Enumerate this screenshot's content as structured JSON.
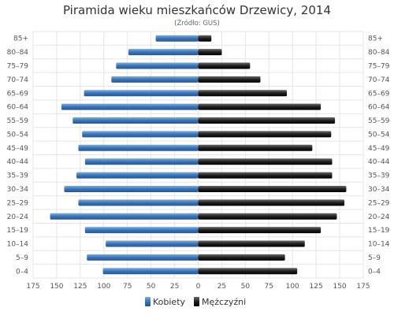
{
  "chart_data": {
    "type": "bar",
    "orientation": "horizontal-population-pyramid",
    "title": "Piramida wieku mieszkańców Drzewicy, 2014",
    "subtitle": "(Źródło: GUS)",
    "categories": [
      "85+",
      "80–84",
      "75–79",
      "70–74",
      "65–69",
      "60–64",
      "55–59",
      "50–54",
      "45–49",
      "40–44",
      "35–39",
      "30–34",
      "25–29",
      "20–24",
      "15–19",
      "10–14",
      "5–9",
      "0–4"
    ],
    "series": [
      {
        "name": "Kobiety",
        "color": "#3a73b5",
        "values": [
          45,
          74,
          87,
          92,
          121,
          145,
          133,
          123,
          127,
          120,
          129,
          142,
          127,
          157,
          120,
          98,
          118,
          101
        ]
      },
      {
        "name": "Mężczyźni",
        "color": "#1f1f1f",
        "values": [
          14,
          25,
          55,
          66,
          94,
          130,
          145,
          141,
          121,
          142,
          142,
          157,
          155,
          147,
          130,
          113,
          92,
          105
        ]
      }
    ],
    "xlim": [
      -175,
      175
    ],
    "x_ticks": [
      -175,
      -150,
      -125,
      -100,
      -75,
      -50,
      -25,
      0,
      25,
      50,
      75,
      100,
      125,
      150,
      175
    ],
    "x_tick_labels": [
      "175",
      "150",
      "125",
      "100",
      "75",
      "50",
      "25",
      "0",
      "25",
      "50",
      "75",
      "100",
      "125",
      "150",
      "175"
    ],
    "grid": true,
    "legend": "bottom-center"
  }
}
